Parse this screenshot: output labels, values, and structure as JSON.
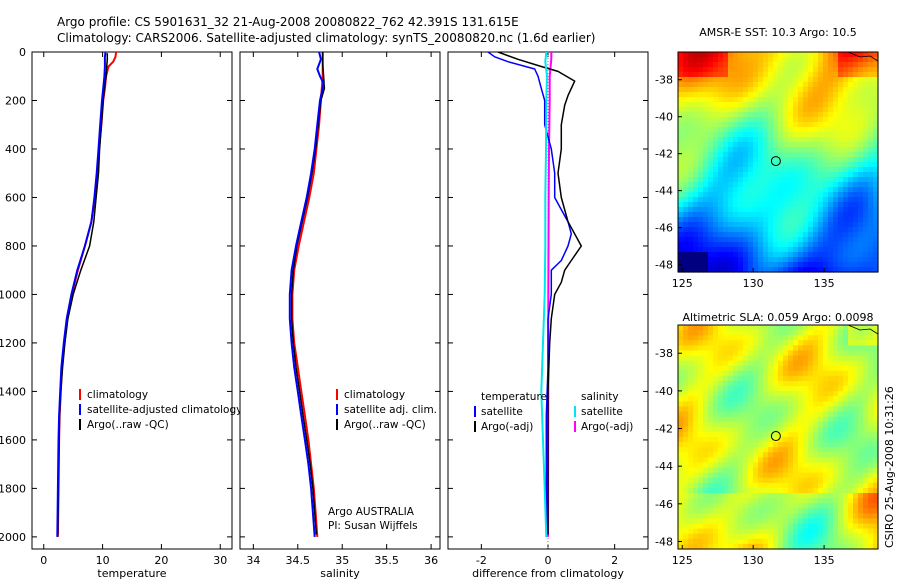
{
  "header": {
    "line1": "Argo profile: CS 5901631_32 21-Aug-2008 20080822_762 42.391S 131.615E",
    "line2": "Climatology: CARS2006. Satellite-adjusted climatology: synTS_20080820.nc (1.6d earlier)"
  },
  "side_stamp": "CSIRO 25-Aug-2008 10:31:26",
  "colors": {
    "climatology": "#ff0000",
    "satellite": "#0000ff",
    "argo": "#000000",
    "sal_satellite": "#00e5ee",
    "sal_argo": "#ff00ff"
  },
  "chart_data": [
    {
      "type": "line",
      "id": "temperature",
      "xlabel": "temperature",
      "xlim": [
        -2,
        32
      ],
      "ylim": [
        2050,
        0
      ],
      "xticks": [
        0,
        10,
        20,
        30
      ],
      "yticks": [
        0,
        200,
        400,
        600,
        800,
        1000,
        1200,
        1400,
        1600,
        1800,
        2000
      ],
      "legend": [
        "climatology",
        "satellite-adjusted climatology",
        "Argo(..raw -QC)"
      ],
      "series": [
        {
          "name": "climatology",
          "color": "#ff0000",
          "width": 2,
          "points": [
            [
              12.3,
              0
            ],
            [
              12.2,
              20
            ],
            [
              11.8,
              40
            ],
            [
              11.0,
              60
            ],
            [
              10.6,
              100
            ],
            [
              10.4,
              150
            ],
            [
              10.1,
              200
            ],
            [
              9.8,
              300
            ],
            [
              9.4,
              400
            ],
            [
              9.1,
              500
            ],
            [
              8.7,
              600
            ],
            [
              8.1,
              700
            ],
            [
              7.0,
              800
            ],
            [
              5.8,
              900
            ],
            [
              4.8,
              1000
            ],
            [
              4.0,
              1100
            ],
            [
              3.5,
              1200
            ],
            [
              3.1,
              1300
            ],
            [
              2.9,
              1400
            ],
            [
              2.7,
              1500
            ],
            [
              2.6,
              1600
            ],
            [
              2.5,
              1800
            ],
            [
              2.4,
              2000
            ]
          ]
        },
        {
          "name": "Argo(..raw -QC)",
          "color": "#000000",
          "width": 1.5,
          "points": [
            [
              10.8,
              5
            ],
            [
              10.8,
              30
            ],
            [
              10.7,
              60
            ],
            [
              10.6,
              100
            ],
            [
              10.3,
              150
            ],
            [
              10.1,
              200
            ],
            [
              9.8,
              300
            ],
            [
              9.5,
              400
            ],
            [
              9.3,
              500
            ],
            [
              8.9,
              600
            ],
            [
              8.5,
              700
            ],
            [
              7.8,
              800
            ],
            [
              6.3,
              900
            ],
            [
              5.0,
              1000
            ],
            [
              4.1,
              1100
            ],
            [
              3.6,
              1200
            ],
            [
              3.2,
              1300
            ],
            [
              2.9,
              1400
            ],
            [
              2.7,
              1500
            ],
            [
              2.6,
              1600
            ],
            [
              2.5,
              1800
            ],
            [
              2.4,
              1990
            ]
          ]
        },
        {
          "name": "satellite-adjusted climatology",
          "color": "#0000ff",
          "width": 2,
          "points": [
            [
              10.5,
              0
            ],
            [
              10.4,
              20
            ],
            [
              10.4,
              60
            ],
            [
              10.3,
              100
            ],
            [
              10.1,
              150
            ],
            [
              9.9,
              200
            ],
            [
              9.6,
              300
            ],
            [
              9.3,
              400
            ],
            [
              9.0,
              500
            ],
            [
              8.6,
              600
            ],
            [
              8.1,
              700
            ],
            [
              7.0,
              800
            ],
            [
              5.7,
              900
            ],
            [
              4.7,
              1000
            ],
            [
              3.9,
              1100
            ],
            [
              3.4,
              1200
            ],
            [
              3.0,
              1300
            ],
            [
              2.8,
              1400
            ],
            [
              2.6,
              1500
            ],
            [
              2.5,
              1600
            ],
            [
              2.4,
              1800
            ],
            [
              2.3,
              2000
            ]
          ]
        }
      ]
    },
    {
      "type": "line",
      "id": "salinity",
      "xlabel": "salinity",
      "xlim": [
        33.85,
        36.1
      ],
      "ylim": [
        2050,
        0
      ],
      "xticks": [
        34,
        34.5,
        35,
        35.5,
        36
      ],
      "yticks": [
        0,
        200,
        400,
        600,
        800,
        1000,
        1200,
        1400,
        1600,
        1800,
        2000
      ],
      "legend": [
        "climatology",
        "satellite adj. clim.",
        "Argo(..raw -QC)"
      ],
      "annotation": [
        "Argo AUSTRALIA",
        "PI: Susan Wijffels"
      ],
      "series": [
        {
          "name": "climatology",
          "color": "#ff0000",
          "width": 2,
          "points": [
            [
              34.78,
              0
            ],
            [
              34.78,
              50
            ],
            [
              34.78,
              100
            ],
            [
              34.76,
              200
            ],
            [
              34.74,
              300
            ],
            [
              34.71,
              400
            ],
            [
              34.68,
              500
            ],
            [
              34.63,
              600
            ],
            [
              34.57,
              700
            ],
            [
              34.51,
              800
            ],
            [
              34.46,
              900
            ],
            [
              34.44,
              1000
            ],
            [
              34.44,
              1100
            ],
            [
              34.46,
              1200
            ],
            [
              34.5,
              1300
            ],
            [
              34.54,
              1400
            ],
            [
              34.58,
              1500
            ],
            [
              34.62,
              1600
            ],
            [
              34.65,
              1700
            ],
            [
              34.68,
              1800
            ],
            [
              34.7,
              1900
            ],
            [
              34.72,
              2000
            ]
          ]
        },
        {
          "name": "Argo(..raw -QC)",
          "color": "#000000",
          "width": 1.5,
          "points": [
            [
              34.78,
              0
            ],
            [
              34.78,
              50
            ],
            [
              34.79,
              100
            ],
            [
              34.8,
              150
            ],
            [
              34.76,
              200
            ],
            [
              34.73,
              300
            ],
            [
              34.7,
              400
            ],
            [
              34.66,
              500
            ],
            [
              34.61,
              600
            ],
            [
              34.55,
              700
            ],
            [
              34.49,
              800
            ],
            [
              34.45,
              900
            ],
            [
              34.43,
              1000
            ],
            [
              34.43,
              1100
            ],
            [
              34.45,
              1200
            ],
            [
              34.48,
              1300
            ],
            [
              34.52,
              1400
            ],
            [
              34.56,
              1500
            ],
            [
              34.6,
              1600
            ],
            [
              34.64,
              1700
            ],
            [
              34.67,
              1800
            ],
            [
              34.69,
              1900
            ],
            [
              34.71,
              1990
            ]
          ]
        },
        {
          "name": "satellite adj. clim.",
          "color": "#0000ff",
          "width": 2,
          "points": [
            [
              34.74,
              0
            ],
            [
              34.76,
              30
            ],
            [
              34.72,
              70
            ],
            [
              34.75,
              100
            ],
            [
              34.79,
              130
            ],
            [
              34.75,
              200
            ],
            [
              34.72,
              300
            ],
            [
              34.69,
              400
            ],
            [
              34.65,
              500
            ],
            [
              34.6,
              600
            ],
            [
              34.54,
              700
            ],
            [
              34.48,
              800
            ],
            [
              34.43,
              900
            ],
            [
              34.41,
              1000
            ],
            [
              34.41,
              1100
            ],
            [
              34.43,
              1200
            ],
            [
              34.46,
              1300
            ],
            [
              34.5,
              1400
            ],
            [
              34.54,
              1500
            ],
            [
              34.58,
              1600
            ],
            [
              34.62,
              1700
            ],
            [
              34.65,
              1800
            ],
            [
              34.67,
              1900
            ],
            [
              34.69,
              2000
            ]
          ]
        }
      ]
    },
    {
      "type": "line",
      "id": "difference",
      "xlabel": "difference from climatology",
      "xlim": [
        -3.0,
        3.0
      ],
      "ylim": [
        2050,
        0
      ],
      "xticks": [
        -2,
        0,
        2
      ],
      "yticks": [
        0,
        200,
        400,
        600,
        800,
        1000,
        1200,
        1400,
        1600,
        1800,
        2000
      ],
      "legend_headers": [
        "temperature",
        "salinity"
      ],
      "legend": [
        [
          "satellite",
          "Argo(-adj)"
        ],
        [
          "satellite",
          "Argo(-adj)"
        ]
      ],
      "series": [
        {
          "name": "Argo(-adj)",
          "group": "salinity",
          "color": "#ff00ff",
          "width": 2,
          "points": [
            [
              0.1,
              0
            ],
            [
              0.1,
              30
            ],
            [
              0.05,
              100
            ],
            [
              0.05,
              200
            ],
            [
              0.03,
              400
            ],
            [
              0.02,
              600
            ],
            [
              0.01,
              1000
            ],
            [
              0.01,
              1400
            ],
            [
              0.0,
              2000
            ]
          ]
        },
        {
          "name": "satellite",
          "group": "temperature",
          "color": "#0000ff",
          "width": 1.5,
          "points": [
            [
              -1.8,
              0
            ],
            [
              -1.6,
              20
            ],
            [
              -1.2,
              40
            ],
            [
              -0.4,
              70
            ],
            [
              -0.3,
              100
            ],
            [
              -0.2,
              150
            ],
            [
              -0.1,
              200
            ],
            [
              -0.1,
              300
            ],
            [
              0.1,
              400
            ],
            [
              0.2,
              500
            ],
            [
              0.2,
              600
            ],
            [
              0.4,
              650
            ],
            [
              0.6,
              700
            ],
            [
              0.7,
              750
            ],
            [
              0.6,
              800
            ],
            [
              0.4,
              860
            ],
            [
              0.1,
              900
            ],
            [
              0.1,
              1000
            ],
            [
              0.0,
              1100
            ],
            [
              0.0,
              1300
            ],
            [
              -0.05,
              1500
            ],
            [
              -0.05,
              1700
            ],
            [
              -0.05,
              1900
            ],
            [
              -0.05,
              2000
            ]
          ]
        },
        {
          "name": "Argo(-adj)",
          "group": "temperature",
          "color": "#000000",
          "width": 1.5,
          "points": [
            [
              -1.5,
              0
            ],
            [
              -0.9,
              30
            ],
            [
              -0.2,
              60
            ],
            [
              0.3,
              80
            ],
            [
              0.8,
              120
            ],
            [
              0.6,
              180
            ],
            [
              0.5,
              220
            ],
            [
              0.4,
              300
            ],
            [
              0.4,
              400
            ],
            [
              0.3,
              500
            ],
            [
              0.4,
              600
            ],
            [
              0.6,
              700
            ],
            [
              1.0,
              800
            ],
            [
              0.7,
              860
            ],
            [
              0.5,
              900
            ],
            [
              0.4,
              950
            ],
            [
              0.2,
              1000
            ],
            [
              0.1,
              1100
            ],
            [
              0.05,
              1200
            ],
            [
              0.0,
              1400
            ],
            [
              0.0,
              1600
            ],
            [
              0.0,
              1800
            ],
            [
              0.0,
              1990
            ]
          ]
        },
        {
          "name": "satellite",
          "group": "salinity",
          "color": "#00e5ee",
          "width": 2,
          "points": [
            [
              -0.05,
              0
            ],
            [
              -0.08,
              40
            ],
            [
              -0.03,
              100
            ],
            [
              -0.05,
              200
            ],
            [
              -0.06,
              400
            ],
            [
              -0.08,
              600
            ],
            [
              -0.08,
              800
            ],
            [
              -0.1,
              1000
            ],
            [
              -0.15,
              1200
            ],
            [
              -0.2,
              1400
            ],
            [
              -0.15,
              1600
            ],
            [
              -0.1,
              1800
            ],
            [
              -0.05,
              2000
            ]
          ]
        }
      ]
    },
    {
      "type": "heatmap",
      "id": "sst-map",
      "title": "AMSR-E SST: 10.3 Argo: 10.5",
      "xlim": [
        124.7,
        138.8
      ],
      "ylim": [
        -48.4,
        -36.5
      ],
      "xticks": [
        125,
        130,
        135
      ],
      "yticks": [
        -38,
        -40,
        -42,
        -44,
        -46,
        -48
      ],
      "marker": {
        "lon": 131.6,
        "lat": -42.4
      },
      "palette": "jet"
    },
    {
      "type": "heatmap",
      "id": "sla-map",
      "title": "Altimetric SLA: 0.059 Argo: 0.0098",
      "xlim": [
        124.7,
        138.8
      ],
      "ylim": [
        -48.4,
        -36.5
      ],
      "xticks": [
        125,
        130,
        135
      ],
      "yticks": [
        -38,
        -40,
        -42,
        -44,
        -46,
        -48
      ],
      "marker": {
        "lon": 131.6,
        "lat": -42.4
      },
      "palette": "jet"
    }
  ]
}
